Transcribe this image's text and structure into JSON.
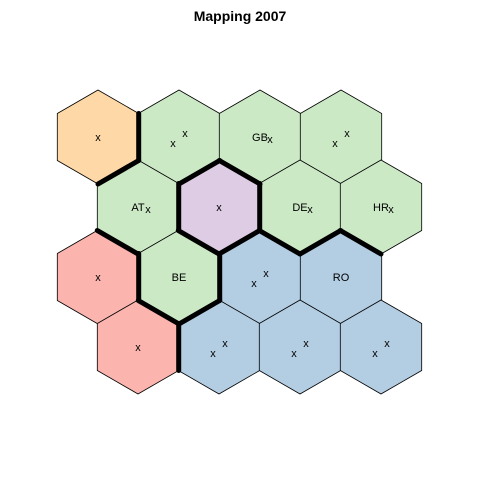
{
  "title": "Mapping 2007",
  "colors": {
    "orange": "#fed8a6",
    "green": "#cce9c6",
    "purple": "#decbe4",
    "red": "#fbb4ae",
    "blue": "#b3cde3",
    "outline": "#000000",
    "boundary": "#000000"
  },
  "cells": [
    {
      "row": 0,
      "col": 0,
      "color": "orange",
      "label": "",
      "marks": 1
    },
    {
      "row": 0,
      "col": 1,
      "color": "green",
      "label": "",
      "marks": 2
    },
    {
      "row": 0,
      "col": 2,
      "color": "green",
      "label": "GB",
      "marks": 1
    },
    {
      "row": 0,
      "col": 3,
      "color": "green",
      "label": "",
      "marks": 2
    },
    {
      "row": 1,
      "col": 0,
      "color": "green",
      "label": "AT",
      "marks": 1
    },
    {
      "row": 1,
      "col": 1,
      "color": "purple",
      "label": "",
      "marks": 1
    },
    {
      "row": 1,
      "col": 2,
      "color": "green",
      "label": "DE",
      "marks": 1
    },
    {
      "row": 1,
      "col": 3,
      "color": "green",
      "label": "HR",
      "marks": 1
    },
    {
      "row": 2,
      "col": 0,
      "color": "red",
      "label": "",
      "marks": 1
    },
    {
      "row": 2,
      "col": 1,
      "color": "green",
      "label": "BE",
      "marks": 0
    },
    {
      "row": 2,
      "col": 2,
      "color": "blue",
      "label": "",
      "marks": 2
    },
    {
      "row": 2,
      "col": 3,
      "color": "blue",
      "label": "RO",
      "marks": 0
    },
    {
      "row": 3,
      "col": 0,
      "color": "red",
      "label": "",
      "marks": 1
    },
    {
      "row": 3,
      "col": 1,
      "color": "blue",
      "label": "",
      "marks": 2
    },
    {
      "row": 3,
      "col": 2,
      "color": "blue",
      "label": "",
      "marks": 2
    },
    {
      "row": 3,
      "col": 3,
      "color": "blue",
      "label": "",
      "marks": 2
    }
  ],
  "mark_symbol": "x"
}
